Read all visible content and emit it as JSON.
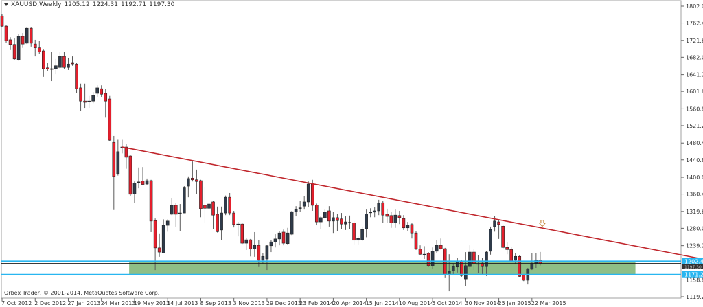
{
  "header": {
    "symbol": "XAUUSD,Weekly",
    "open": "1205.12",
    "high": "1224.31",
    "low": "1192.71",
    "close": "1197.30"
  },
  "copyright": "Orbex Trader, © 2001-2014, MetaQuotes Software Corp.",
  "colors": {
    "bull": "#2f3b4a",
    "bear": "#e41f2c",
    "wick": "#5a5a5a",
    "trendline": "#c0262c",
    "level_line": "#29b6f0",
    "zone": "#8fbf86",
    "bid_line": "#1e1e1e"
  },
  "chart_data": {
    "type": "candlestick",
    "title": "XAUUSD,Weekly",
    "ylim": [
      1119.2,
      1802.0
    ],
    "y_ticks": [
      "1802.00",
      "1762.40",
      "1721.60",
      "1682.00",
      "1641.20",
      "1601.60",
      "1560.80",
      "1521.20",
      "1480.40",
      "1440.80",
      "1400.00",
      "1360.40",
      "1319.60",
      "1280.00",
      "1239.20",
      "1158.80",
      "1119.20"
    ],
    "x_ticks": [
      {
        "week": 0,
        "label": "7 Oct 2012"
      },
      {
        "week": 8,
        "label": "2 Dec 2012"
      },
      {
        "week": 16,
        "label": "27 Jan 2013"
      },
      {
        "week": 24,
        "label": "24 Mar 2013"
      },
      {
        "week": 32,
        "label": "19 May 2013"
      },
      {
        "week": 40,
        "label": "14 Jul 2013"
      },
      {
        "week": 48,
        "label": "8 Sep 2013"
      },
      {
        "week": 56,
        "label": "3 Nov 2013"
      },
      {
        "week": 64,
        "label": "29 Dec 2013"
      },
      {
        "week": 72,
        "label": "23 Feb 2014"
      },
      {
        "week": 80,
        "label": "20 Apr 2014"
      },
      {
        "week": 88,
        "label": "15 Jun 2014"
      },
      {
        "week": 96,
        "label": "10 Aug 2014"
      },
      {
        "week": 104,
        "label": "5 Oct 2014"
      },
      {
        "week": 112,
        "label": "30 Nov 2014"
      },
      {
        "week": 120,
        "label": "25 Jan 2015"
      },
      {
        "week": 128,
        "label": "22 Mar 2015"
      }
    ],
    "ohlc_fields": [
      "open",
      "high",
      "low",
      "close"
    ],
    "candles": [
      [
        1779,
        1783,
        1752,
        1755
      ],
      [
        1755,
        1758,
        1716,
        1721
      ],
      [
        1723,
        1729,
        1699,
        1712
      ],
      [
        1712,
        1726,
        1676,
        1678
      ],
      [
        1676,
        1737,
        1674,
        1731
      ],
      [
        1731,
        1739,
        1704,
        1713
      ],
      [
        1715,
        1752,
        1713,
        1750
      ],
      [
        1750,
        1752,
        1707,
        1715
      ],
      [
        1713,
        1723,
        1684,
        1704
      ],
      [
        1704,
        1721,
        1689,
        1695
      ],
      [
        1697,
        1700,
        1636,
        1655
      ],
      [
        1657,
        1668,
        1649,
        1654
      ],
      [
        1655,
        1694,
        1626,
        1654
      ],
      [
        1655,
        1678,
        1642,
        1662
      ],
      [
        1658,
        1695,
        1655,
        1684
      ],
      [
        1684,
        1695,
        1654,
        1658
      ],
      [
        1658,
        1681,
        1652,
        1666
      ],
      [
        1668,
        1684,
        1662,
        1667
      ],
      [
        1666,
        1668,
        1597,
        1608
      ],
      [
        1610,
        1620,
        1555,
        1579
      ],
      [
        1579,
        1620,
        1563,
        1576
      ],
      [
        1578,
        1591,
        1563,
        1579
      ],
      [
        1579,
        1600,
        1574,
        1592
      ],
      [
        1597,
        1616,
        1589,
        1610
      ],
      [
        1608,
        1616,
        1589,
        1595
      ],
      [
        1597,
        1607,
        1540,
        1579
      ],
      [
        1584,
        1591,
        1485,
        1487
      ],
      [
        1482,
        1497,
        1323,
        1402
      ],
      [
        1408,
        1488,
        1404,
        1460
      ],
      [
        1469,
        1488,
        1456,
        1471
      ],
      [
        1471,
        1478,
        1420,
        1447
      ],
      [
        1450,
        1453,
        1356,
        1360
      ],
      [
        1361,
        1390,
        1339,
        1386
      ],
      [
        1389,
        1423,
        1374,
        1389
      ],
      [
        1391,
        1424,
        1381,
        1383
      ],
      [
        1384,
        1397,
        1381,
        1392
      ],
      [
        1392,
        1394,
        1271,
        1297
      ],
      [
        1298,
        1303,
        1182,
        1234
      ],
      [
        1234,
        1268,
        1213,
        1224
      ],
      [
        1222,
        1301,
        1221,
        1287
      ],
      [
        1287,
        1301,
        1272,
        1297
      ],
      [
        1313,
        1350,
        1311,
        1334
      ],
      [
        1334,
        1340,
        1284,
        1313
      ],
      [
        1316,
        1337,
        1274,
        1316
      ],
      [
        1316,
        1379,
        1316,
        1375
      ],
      [
        1379,
        1402,
        1353,
        1397
      ],
      [
        1398,
        1437,
        1390,
        1394
      ],
      [
        1394,
        1418,
        1361,
        1390
      ],
      [
        1392,
        1394,
        1306,
        1326
      ],
      [
        1334,
        1377,
        1292,
        1327
      ],
      [
        1327,
        1345,
        1308,
        1337
      ],
      [
        1342,
        1345,
        1279,
        1311
      ],
      [
        1313,
        1331,
        1270,
        1272
      ],
      [
        1276,
        1331,
        1253,
        1316
      ],
      [
        1316,
        1357,
        1311,
        1353
      ],
      [
        1353,
        1363,
        1311,
        1316
      ],
      [
        1316,
        1321,
        1282,
        1289
      ],
      [
        1290,
        1295,
        1261,
        1290
      ],
      [
        1290,
        1292,
        1243,
        1245
      ],
      [
        1245,
        1258,
        1229,
        1253
      ],
      [
        1253,
        1255,
        1214,
        1231
      ],
      [
        1232,
        1271,
        1213,
        1240
      ],
      [
        1240,
        1252,
        1189,
        1205
      ],
      [
        1205,
        1221,
        1197,
        1214
      ],
      [
        1208,
        1241,
        1182,
        1239
      ],
      [
        1239,
        1252,
        1224,
        1248
      ],
      [
        1248,
        1266,
        1235,
        1255
      ],
      [
        1255,
        1274,
        1240,
        1269
      ],
      [
        1271,
        1277,
        1240,
        1245
      ],
      [
        1244,
        1281,
        1242,
        1269
      ],
      [
        1266,
        1321,
        1264,
        1319
      ],
      [
        1319,
        1332,
        1308,
        1324
      ],
      [
        1327,
        1345,
        1319,
        1328
      ],
      [
        1332,
        1356,
        1324,
        1342
      ],
      [
        1342,
        1390,
        1329,
        1384
      ],
      [
        1384,
        1394,
        1321,
        1334
      ],
      [
        1335,
        1338,
        1287,
        1295
      ],
      [
        1295,
        1309,
        1279,
        1305
      ],
      [
        1305,
        1324,
        1303,
        1318
      ],
      [
        1321,
        1332,
        1284,
        1297
      ],
      [
        1297,
        1318,
        1269,
        1305
      ],
      [
        1305,
        1314,
        1274,
        1298
      ],
      [
        1302,
        1316,
        1279,
        1290
      ],
      [
        1290,
        1308,
        1276,
        1295
      ],
      [
        1293,
        1310,
        1279,
        1294
      ],
      [
        1293,
        1297,
        1242,
        1252
      ],
      [
        1252,
        1261,
        1242,
        1256
      ],
      [
        1253,
        1284,
        1250,
        1277
      ],
      [
        1279,
        1324,
        1259,
        1314
      ],
      [
        1317,
        1327,
        1306,
        1318
      ],
      [
        1318,
        1329,
        1306,
        1321
      ],
      [
        1321,
        1347,
        1311,
        1339
      ],
      [
        1340,
        1344,
        1293,
        1311
      ],
      [
        1313,
        1326,
        1292,
        1308
      ],
      [
        1310,
        1319,
        1281,
        1293
      ],
      [
        1293,
        1324,
        1281,
        1311
      ],
      [
        1310,
        1321,
        1290,
        1305
      ],
      [
        1303,
        1311,
        1276,
        1281
      ],
      [
        1281,
        1295,
        1273,
        1287
      ],
      [
        1289,
        1292,
        1256,
        1269
      ],
      [
        1269,
        1274,
        1229,
        1232
      ],
      [
        1231,
        1240,
        1216,
        1219
      ],
      [
        1219,
        1238,
        1208,
        1219
      ],
      [
        1221,
        1224,
        1189,
        1192
      ],
      [
        1192,
        1235,
        1184,
        1226
      ],
      [
        1226,
        1252,
        1222,
        1240
      ],
      [
        1240,
        1256,
        1230,
        1232
      ],
      [
        1232,
        1234,
        1163,
        1172
      ],
      [
        1172,
        1219,
        1132,
        1179
      ],
      [
        1180,
        1198,
        1171,
        1190
      ],
      [
        1189,
        1210,
        1176,
        1201
      ],
      [
        1203,
        1206,
        1166,
        1169
      ],
      [
        1161,
        1224,
        1145,
        1192
      ],
      [
        1190,
        1240,
        1184,
        1224
      ],
      [
        1224,
        1231,
        1182,
        1197
      ],
      [
        1197,
        1216,
        1174,
        1197
      ],
      [
        1198,
        1211,
        1171,
        1190
      ],
      [
        1190,
        1227,
        1168,
        1224
      ],
      [
        1226,
        1284,
        1218,
        1277
      ],
      [
        1284,
        1309,
        1272,
        1297
      ],
      [
        1295,
        1300,
        1255,
        1289
      ],
      [
        1285,
        1287,
        1232,
        1235
      ],
      [
        1235,
        1247,
        1219,
        1230
      ],
      [
        1230,
        1235,
        1200,
        1203
      ],
      [
        1205,
        1222,
        1195,
        1214
      ],
      [
        1214,
        1217,
        1166,
        1167
      ],
      [
        1171,
        1172,
        1156,
        1158
      ],
      [
        1158,
        1187,
        1148,
        1185
      ],
      [
        1184,
        1222,
        1182,
        1198
      ],
      [
        1198,
        1222,
        1187,
        1205
      ],
      [
        1205.12,
        1224.31,
        1192.71,
        1197.3
      ]
    ],
    "trendline": {
      "start": {
        "week": 29,
        "price": 1471
      },
      "end": {
        "week": 168,
        "price": 1210
      }
    },
    "levels": [
      {
        "price": 1202.43,
        "label": "1202.43"
      },
      {
        "price": 1171.27,
        "label": "1171.27"
      }
    ],
    "bid": {
      "price": 1197.3,
      "label": "1197.30"
    },
    "zone": {
      "from_week": 30.7,
      "to_week": 153,
      "low": 1171.27,
      "high": 1202.43
    },
    "arrow_marker": {
      "week": 130.5,
      "price": 1286,
      "icon": "down-arrow-icon"
    }
  }
}
